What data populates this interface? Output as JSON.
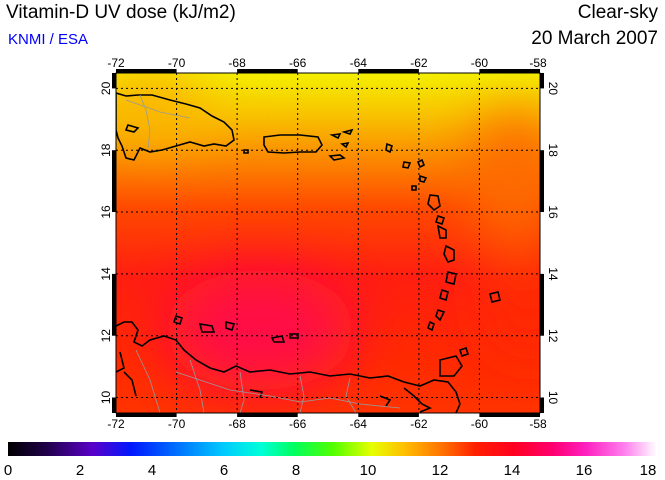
{
  "header": {
    "title": "Vitamin-D UV dose (kJ/m2)",
    "source": "KNMI / ESA",
    "mode": "Clear-sky",
    "date": "20 March 2007"
  },
  "colors": {
    "source_text": "#0000ff"
  },
  "map": {
    "lon_range": [
      -72,
      -58
    ],
    "lat_range": [
      9.5,
      20.5
    ],
    "lon_ticks": [
      "-72",
      "-70",
      "-68",
      "-66",
      "-64",
      "-62",
      "-60",
      "-58"
    ],
    "lat_ticks": [
      "10",
      "12",
      "14",
      "16",
      "18",
      "20"
    ],
    "gridlines": true,
    "region": "Caribbean"
  },
  "colorbar": {
    "range": [
      0,
      18
    ],
    "tick_labels": [
      "0",
      "2",
      "4",
      "6",
      "8",
      "10",
      "12",
      "14",
      "16",
      "18"
    ]
  }
}
